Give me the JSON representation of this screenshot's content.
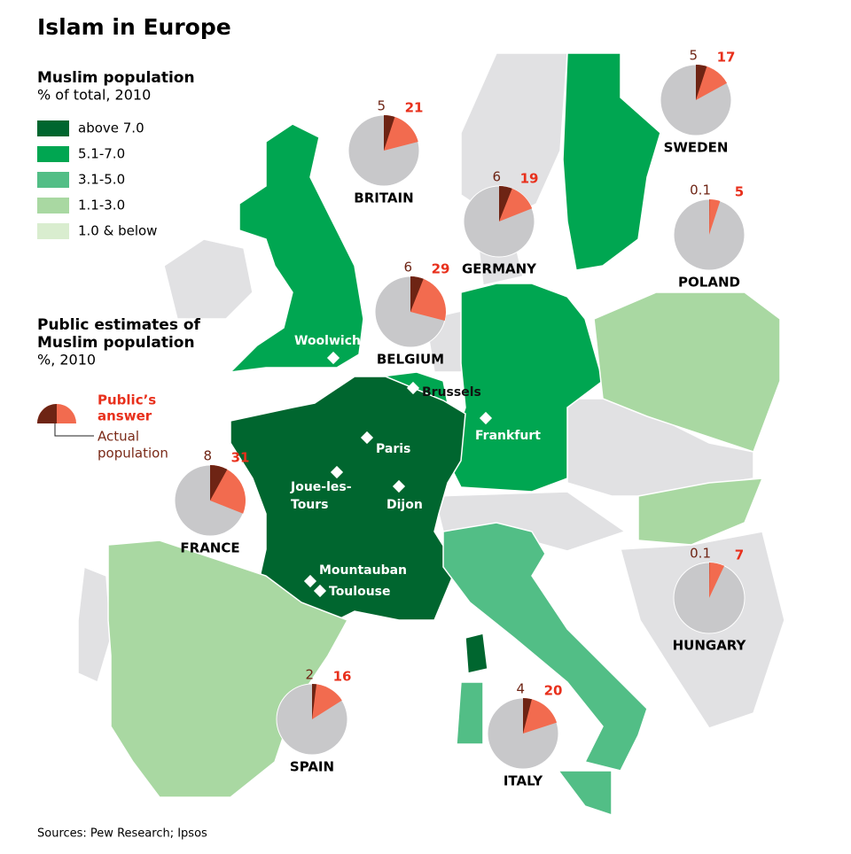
{
  "title": "Islam in Europe",
  "legend": {
    "title": "Muslim population",
    "subtitle": "% of total, 2010",
    "items": [
      {
        "label": "above 7.0",
        "color": "#00662f"
      },
      {
        "label": "5.1-7.0",
        "color": "#00a651"
      },
      {
        "label": "3.1-5.0",
        "color": "#52be86"
      },
      {
        "label": "1.1-3.0",
        "color": "#a9d8a2"
      },
      {
        "label": "1.0 & below",
        "color": "#d9edcf"
      }
    ]
  },
  "estimates_legend": {
    "title_lines": [
      "Public estimates of",
      "Muslim population",
      "%, 2010"
    ],
    "public_label_lines": [
      "Public’s",
      "answer"
    ],
    "actual_label_lines": [
      "Actual",
      "population"
    ]
  },
  "chart_data": {
    "type": "pie",
    "public_color": "#f26b4f",
    "actual_color": "#6e2414",
    "rest_color": "#c8c8ca",
    "countries": [
      {
        "name": "BRITAIN",
        "actual": 5,
        "public": 21
      },
      {
        "name": "SWEDEN",
        "actual": 5,
        "public": 17
      },
      {
        "name": "GERMANY",
        "actual": 6,
        "public": 19
      },
      {
        "name": "POLAND",
        "actual": 0.1,
        "public": 5
      },
      {
        "name": "BELGIUM",
        "actual": 6,
        "public": 29
      },
      {
        "name": "FRANCE",
        "actual": 8,
        "public": 31
      },
      {
        "name": "HUNGARY",
        "actual": 0.1,
        "public": 7
      },
      {
        "name": "SPAIN",
        "actual": 2,
        "public": 16
      },
      {
        "name": "ITALY",
        "actual": 4,
        "public": 20
      }
    ]
  },
  "cities": [
    {
      "lines": [
        "Woolwich"
      ]
    },
    {
      "lines": [
        "Brussels"
      ]
    },
    {
      "lines": [
        "Frankfurt"
      ]
    },
    {
      "lines": [
        "Paris"
      ]
    },
    {
      "lines": [
        "Joue-les-",
        "Tours"
      ]
    },
    {
      "lines": [
        "Dijon"
      ]
    },
    {
      "lines": [
        "Mountauban"
      ]
    },
    {
      "lines": [
        "Toulouse"
      ]
    }
  ],
  "source": "Sources: Pew Research; Ipsos"
}
